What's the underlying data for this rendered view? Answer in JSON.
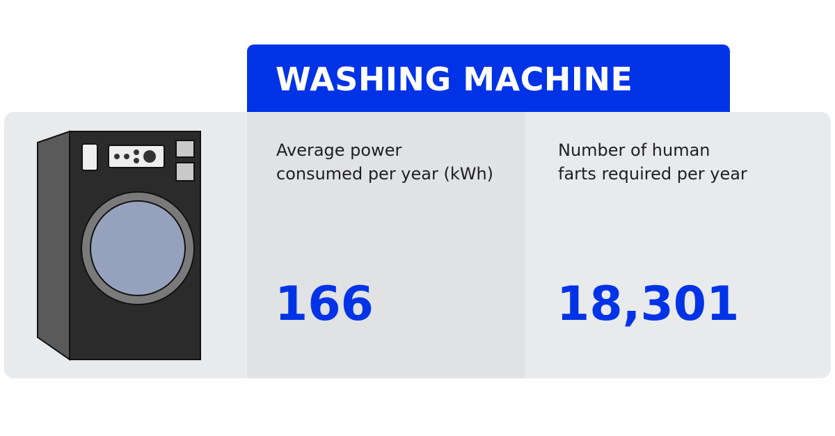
{
  "title": "WASHING MACHINE",
  "power": {
    "label_line1": "Average power",
    "label_line2": "consumed per year (kWh)",
    "value": "166"
  },
  "farts": {
    "label_line1": "Number of human",
    "label_line2": "farts required per year",
    "value": "18,301"
  },
  "illustration": {
    "icon": "washing-machine-icon"
  },
  "colors": {
    "accent": "#0033e6",
    "card": "#e8eaec",
    "card_alt": "#e0e2e4",
    "appliance_body": "#2b2b2b",
    "appliance_side": "#5a5a5a",
    "door_glass": "#96a2bd"
  }
}
